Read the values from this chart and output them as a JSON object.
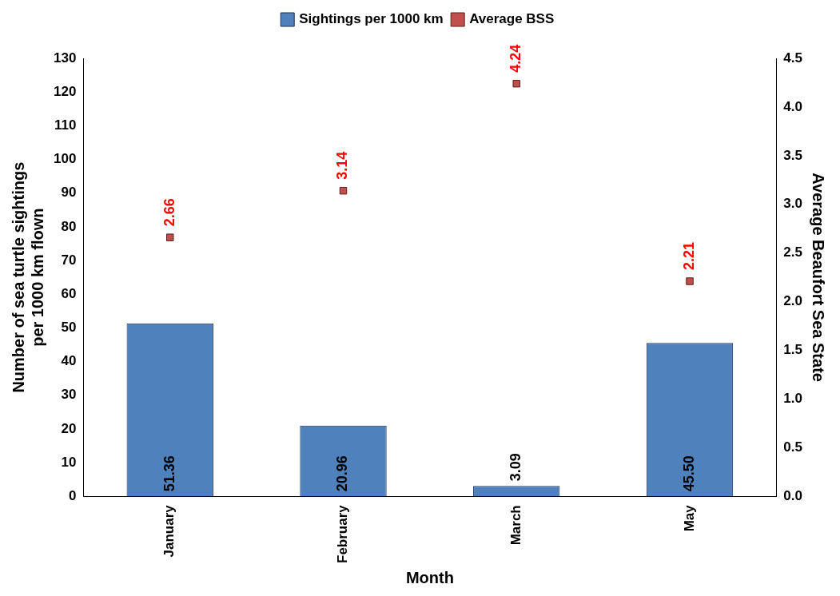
{
  "chart_data": {
    "type": "bar",
    "xlabel": "Month",
    "ylabel": "Number of sea turtle sightings\nper 1000 km flown",
    "y2label": "Average Beaufort Sea State",
    "categories": [
      "January",
      "February",
      "March",
      "May"
    ],
    "series": [
      {
        "name": "Sightings per 1000 km",
        "color": "#4f81bd",
        "values": [
          51.36,
          20.96,
          3.09,
          45.5
        ],
        "value_labels": [
          "51.36",
          "20.96",
          "3.09",
          "45.50"
        ]
      },
      {
        "name": "Average BSS",
        "type": "scatter",
        "axis": "y2",
        "color": "#c0504d",
        "x": [
          "January",
          "February",
          "March",
          "May"
        ],
        "values": [
          2.66,
          3.14,
          4.24,
          2.21
        ],
        "value_labels": [
          "2.66",
          "3.14",
          "4.24",
          "2.21"
        ]
      }
    ],
    "ylim": [
      0,
      130
    ],
    "yticks": [
      0,
      10,
      20,
      30,
      40,
      50,
      60,
      70,
      80,
      90,
      100,
      110,
      120,
      130
    ],
    "y2lim": [
      0,
      4.5
    ],
    "y2ticks": [
      {
        "value": 0,
        "label": "0.0"
      },
      {
        "value": 0.5,
        "label": "0.5"
      },
      {
        "value": 1,
        "label": "1.0"
      },
      {
        "value": 1.5,
        "label": "1.5"
      },
      {
        "value": 2,
        "label": "2.0"
      },
      {
        "value": 2.5,
        "label": "2.5"
      },
      {
        "value": 3,
        "label": "3.0"
      },
      {
        "value": 3.5,
        "label": "3.5"
      },
      {
        "value": 4,
        "label": "4.0"
      },
      {
        "value": 4.5,
        "label": "4.5"
      }
    ],
    "legend": "top",
    "marker": "square",
    "grid": false
  }
}
